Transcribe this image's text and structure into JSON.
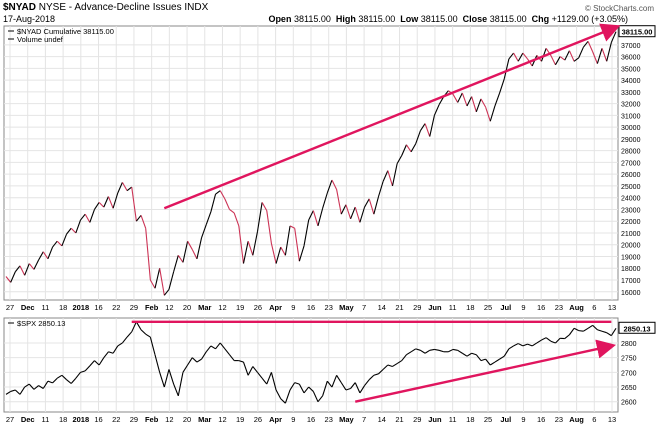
{
  "header": {
    "symbol": "$NYAD",
    "exchange": "NYSE",
    "name": "Advance-Decline Issues INDX",
    "date": "17-Aug-2018",
    "ohlc": {
      "open_label": "Open",
      "open": "38115.00",
      "high_label": "High",
      "high": "38115.00",
      "low_label": "Low",
      "low": "38115.00",
      "close_label": "Close",
      "close": "38115.00",
      "chg_label": "Chg",
      "chg": "+1129.00 (+3.05%)"
    },
    "brand": "© StockCharts.com"
  },
  "colors": {
    "up": "#000000",
    "down": "#cc3355",
    "trend": "#e0155e"
  },
  "chart_data": [
    {
      "type": "line",
      "legend": [
        "$NYAD Cumulative 38115.00",
        "Volume undef"
      ],
      "last_value_label": "38115.00",
      "y_ticks": [
        16000,
        17000,
        18000,
        19000,
        20000,
        21000,
        22000,
        23000,
        24000,
        25000,
        26000,
        27000,
        28000,
        29000,
        30000,
        31000,
        32000,
        33000,
        34000,
        35000,
        36000,
        37000
      ],
      "ylim": [
        15300,
        38600
      ],
      "x_tick_labels": [
        "27",
        "Dec",
        "11",
        "18",
        "2018",
        "16",
        "22",
        "29",
        "Feb",
        "12",
        "20",
        "Mar",
        "12",
        "19",
        "26",
        "Apr",
        "9",
        "16",
        "23",
        "May",
        "7",
        "14",
        "21",
        "29",
        "Jun",
        "11",
        "18",
        "25",
        "Jul",
        "9",
        "16",
        "23",
        "Aug",
        "6",
        "13"
      ],
      "series": [
        {
          "values": [
            17300,
            16800,
            17700,
            18200,
            17400,
            18400,
            17900,
            18700,
            19400,
            18800,
            19800,
            20300,
            19900,
            20900,
            21400,
            21000,
            22100,
            22600,
            21900,
            23000,
            23600,
            23200,
            24100,
            23100,
            24400,
            25300,
            24600,
            24900,
            22000,
            22500,
            21400,
            17000,
            16300,
            18000,
            15700,
            16200,
            17700,
            19100,
            18500,
            20300,
            19600,
            18800,
            20600,
            21700,
            22800,
            24300,
            24600,
            23900,
            23000,
            22700,
            21600,
            18400,
            20300,
            19100,
            21100,
            23600,
            22900,
            20100,
            18400,
            19800,
            19100,
            21600,
            21400,
            18600,
            19900,
            22100,
            22900,
            21600,
            23100,
            24400,
            25500,
            24700,
            22600,
            23400,
            22200,
            23200,
            21900,
            23200,
            23900,
            22600,
            24100,
            25400,
            26300,
            25000,
            26900,
            27600,
            28500,
            27900,
            28600,
            29700,
            30300,
            29200,
            31000,
            31900,
            32600,
            33100,
            32800,
            32100,
            32900,
            31800,
            32600,
            31300,
            32400,
            31700,
            30500,
            31800,
            32900,
            34100,
            35800,
            36300,
            35600,
            36300,
            35800,
            35200,
            36100,
            35600,
            36700,
            36100,
            35300,
            36000,
            35700,
            36500,
            35600,
            35900,
            36800,
            37300,
            36400,
            35400,
            36700,
            35600,
            37200,
            38115
          ]
        }
      ]
    },
    {
      "type": "line",
      "legend": [
        "$SPX 2850.13"
      ],
      "last_value_label": "2850.13",
      "y_ticks": [
        2600,
        2650,
        2700,
        2750,
        2800
      ],
      "ylim": [
        2565,
        2885
      ],
      "series": [
        {
          "values": [
            2625,
            2635,
            2640,
            2625,
            2650,
            2660,
            2642,
            2655,
            2645,
            2670,
            2664,
            2680,
            2690,
            2675,
            2662,
            2680,
            2700,
            2705,
            2722,
            2740,
            2725,
            2750,
            2770,
            2765,
            2790,
            2800,
            2820,
            2838,
            2872,
            2845,
            2830,
            2820,
            2760,
            2700,
            2650,
            2710,
            2660,
            2620,
            2700,
            2725,
            2750,
            2735,
            2745,
            2770,
            2790,
            2780,
            2800,
            2780,
            2760,
            2740,
            2740,
            2735,
            2690,
            2720,
            2700,
            2680,
            2660,
            2700,
            2640,
            2610,
            2595,
            2640,
            2665,
            2660,
            2630,
            2650,
            2635,
            2600,
            2620,
            2670,
            2650,
            2690,
            2665,
            2640,
            2645,
            2665,
            2630,
            2655,
            2675,
            2690,
            2695,
            2710,
            2725,
            2720,
            2730,
            2740,
            2760,
            2770,
            2780,
            2775,
            2765,
            2775,
            2778,
            2775,
            2770,
            2770,
            2778,
            2775,
            2765,
            2755,
            2765,
            2760,
            2740,
            2745,
            2725,
            2735,
            2745,
            2755,
            2780,
            2790,
            2798,
            2790,
            2796,
            2790,
            2800,
            2810,
            2818,
            2806,
            2800,
            2816,
            2815,
            2828,
            2850,
            2842,
            2840,
            2850,
            2860,
            2845,
            2840,
            2835,
            2825,
            2850
          ]
        }
      ]
    }
  ]
}
